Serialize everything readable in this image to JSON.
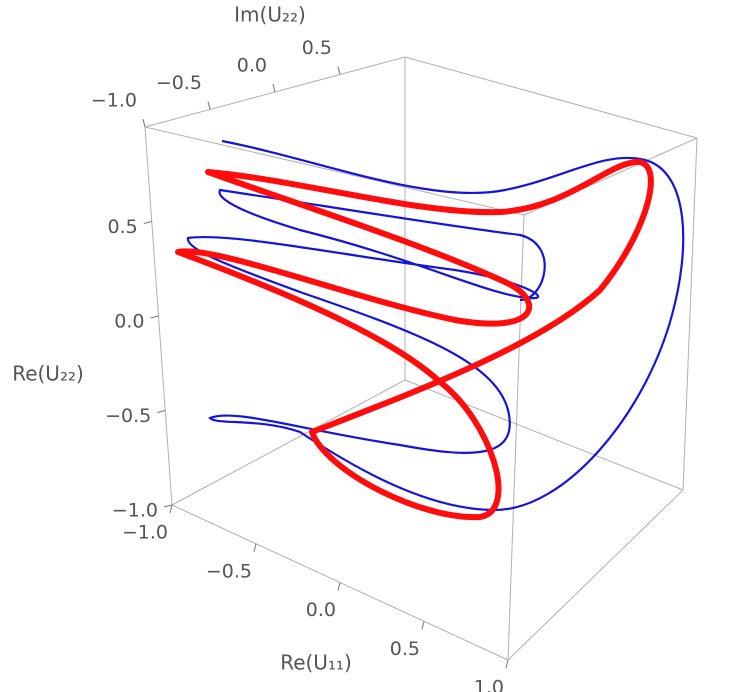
{
  "chart_data": {
    "type": "parametric3d",
    "x_label": "Re(U₁₁)",
    "y_label": "Im(U₂₂)",
    "z_label": "Re(U₂₂)",
    "xlim": [
      -1,
      1
    ],
    "ylim": [
      -1,
      1
    ],
    "zlim": [
      -1,
      1
    ],
    "xticks": [
      {
        "value": -1,
        "label": "−1.0"
      },
      {
        "value": -0.5,
        "label": "−0.5"
      },
      {
        "value": 0,
        "label": "0.0"
      },
      0.5,
      {
        "value": 1,
        "label": "1.0"
      }
    ],
    "yticks": [
      {
        "value": -1,
        "label": "−1.0"
      },
      {
        "value": -0.5,
        "label": "−0.5"
      },
      {
        "value": 0,
        "label": "0.0"
      },
      0.5
    ],
    "zticks": [
      {
        "value": -1,
        "label": "−1.0"
      },
      {
        "value": -0.5,
        "label": "−0.5"
      },
      {
        "value": 0,
        "label": "0.0"
      },
      0.5
    ],
    "box_color": "#b0b0b0"
  }
}
